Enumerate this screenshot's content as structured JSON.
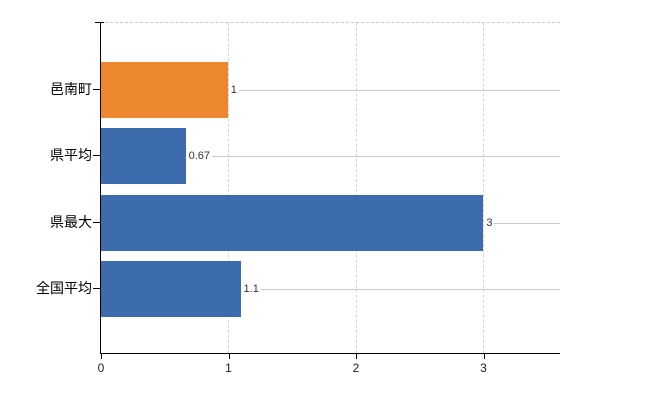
{
  "chart_data": {
    "type": "bar",
    "orientation": "horizontal",
    "title": "",
    "xlabel": "",
    "ylabel": "",
    "categories": [
      "邑南町",
      "県平均",
      "県最大",
      "全国平均"
    ],
    "values": [
      1,
      0.67,
      3,
      1.1
    ],
    "value_labels": [
      "1",
      "0.67",
      "3",
      "1.1"
    ],
    "bar_colors": [
      "#ec8730",
      "#3c6cad",
      "#3c6cad",
      "#3c6cad"
    ],
    "xlim": [
      0,
      3.6
    ],
    "x_ticks": [
      0,
      1,
      2,
      3
    ],
    "x_tick_labels": [
      "0",
      "1",
      "2",
      "3"
    ],
    "grid": true,
    "legend_position": "none",
    "colors": {
      "highlight_bar": "#ec8730",
      "default_bar": "#3c6cad",
      "gridline": "#d4d4d4",
      "plot_top_border": "#c9c9c9",
      "leader_line": "#c5cdc5",
      "axis": "#000000",
      "value_label_text": "#333333",
      "category_label_text": "#000000",
      "tick_label_text": "#222222",
      "background": "#ffffff"
    }
  }
}
